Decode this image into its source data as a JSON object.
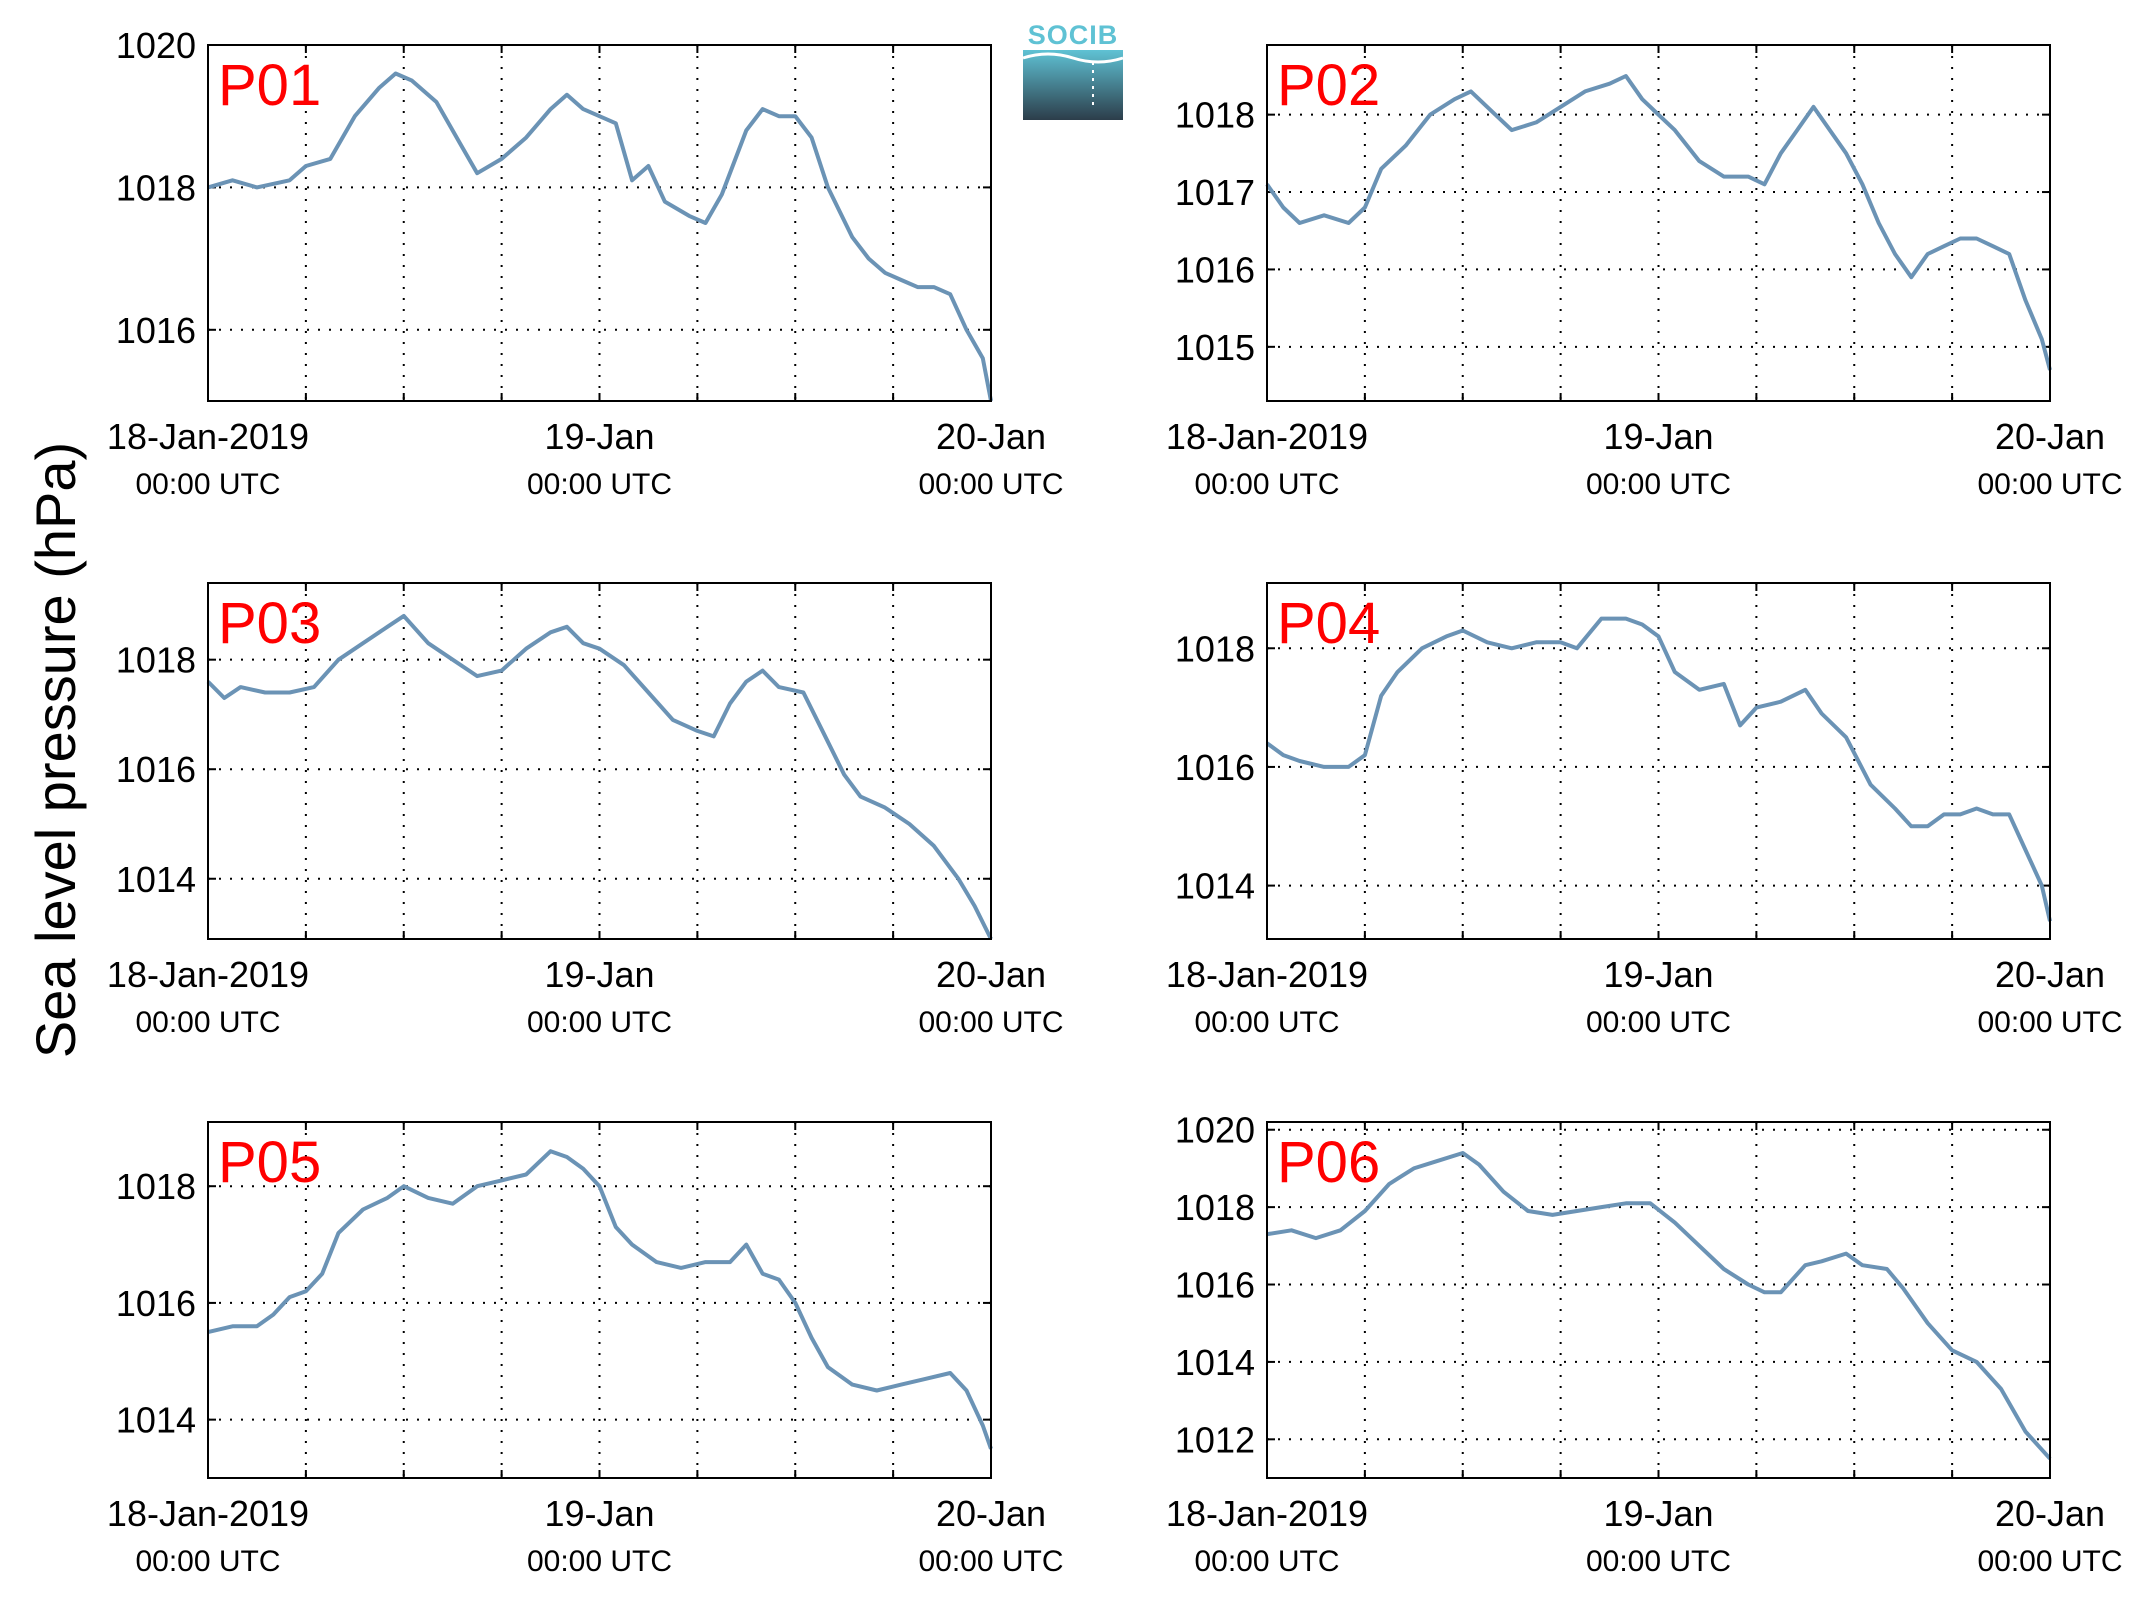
{
  "ylabel": "Sea level pressure (hPa)",
  "logo": {
    "text": "SOCIB"
  },
  "colors": {
    "line": "#6b93b5",
    "panel_label": "#ff0000",
    "grid": "#000000",
    "logo_top": "#5fc2d4",
    "logo_bottom": "#2c3d4a"
  },
  "x_tick_labels": [
    {
      "x": "2019-01-18 00:00",
      "line1": "18-Jan-2019",
      "line2": "00:00 UTC"
    },
    {
      "x": "2019-01-19 00:00",
      "line1": "19-Jan",
      "line2": "00:00 UTC"
    },
    {
      "x": "2019-01-20 00:00",
      "line1": "20-Jan",
      "line2": "00:00 UTC"
    }
  ],
  "chart_data": [
    {
      "type": "line",
      "title": "P01",
      "xlim": [
        "2019-01-18 00:00",
        "2019-01-20 00:00"
      ],
      "x_gridlines_hours": [
        0,
        6,
        12,
        18,
        24,
        30,
        36,
        42,
        48
      ],
      "ylim": [
        1015,
        1020
      ],
      "yticks": [
        1016,
        1018,
        1020
      ],
      "grid": true,
      "x": [
        "2019-01-18 00:00",
        "2019-01-18 01:30",
        "2019-01-18 03:00",
        "2019-01-18 05:00",
        "2019-01-18 06:00",
        "2019-01-18 07:30",
        "2019-01-18 09:00",
        "2019-01-18 10:30",
        "2019-01-18 11:30",
        "2019-01-18 12:30",
        "2019-01-18 14:00",
        "2019-01-18 15:30",
        "2019-01-18 16:30",
        "2019-01-18 18:00",
        "2019-01-18 19:30",
        "2019-01-18 21:00",
        "2019-01-18 22:00",
        "2019-01-18 23:00",
        "2019-01-19 00:00",
        "2019-01-19 01:00",
        "2019-01-19 02:00",
        "2019-01-19 03:00",
        "2019-01-19 04:00",
        "2019-01-19 05:30",
        "2019-01-19 06:30",
        "2019-01-19 07:30",
        "2019-01-19 09:00",
        "2019-01-19 10:00",
        "2019-01-19 11:00",
        "2019-01-19 12:00",
        "2019-01-19 13:00",
        "2019-01-19 14:00",
        "2019-01-19 15:30",
        "2019-01-19 16:30",
        "2019-01-19 17:30",
        "2019-01-19 18:30",
        "2019-01-19 19:30",
        "2019-01-19 20:30",
        "2019-01-19 21:30",
        "2019-01-19 22:30",
        "2019-01-19 23:30",
        "2019-01-20 00:00"
      ],
      "y": [
        1018.0,
        1018.1,
        1018.0,
        1018.1,
        1018.3,
        1018.4,
        1019.0,
        1019.4,
        1019.6,
        1019.5,
        1019.2,
        1018.6,
        1018.2,
        1018.4,
        1018.7,
        1019.1,
        1019.3,
        1019.1,
        1019.0,
        1018.9,
        1018.1,
        1018.3,
        1017.8,
        1017.6,
        1017.5,
        1017.9,
        1018.8,
        1019.1,
        1019.0,
        1019.0,
        1018.7,
        1018.0,
        1017.3,
        1017.0,
        1016.8,
        1016.7,
        1016.6,
        1016.6,
        1016.5,
        1016.0,
        1015.6,
        1015.0
      ]
    },
    {
      "type": "line",
      "title": "P02",
      "xlim": [
        "2019-01-18 00:00",
        "2019-01-20 00:00"
      ],
      "x_gridlines_hours": [
        0,
        6,
        12,
        18,
        24,
        30,
        36,
        42,
        48
      ],
      "ylim": [
        1014.3,
        1018.9
      ],
      "yticks": [
        1015,
        1016,
        1017,
        1018
      ],
      "grid": true,
      "x": [
        "2019-01-18 00:00",
        "2019-01-18 01:00",
        "2019-01-18 02:00",
        "2019-01-18 03:30",
        "2019-01-18 05:00",
        "2019-01-18 06:00",
        "2019-01-18 07:00",
        "2019-01-18 08:30",
        "2019-01-18 10:00",
        "2019-01-18 11:30",
        "2019-01-18 12:30",
        "2019-01-18 13:30",
        "2019-01-18 15:00",
        "2019-01-18 16:30",
        "2019-01-18 18:00",
        "2019-01-18 19:30",
        "2019-01-18 21:00",
        "2019-01-18 22:00",
        "2019-01-18 23:00",
        "2019-01-19 00:00",
        "2019-01-19 01:00",
        "2019-01-19 02:30",
        "2019-01-19 04:00",
        "2019-01-19 05:30",
        "2019-01-19 06:30",
        "2019-01-19 07:30",
        "2019-01-19 08:30",
        "2019-01-19 09:30",
        "2019-01-19 10:30",
        "2019-01-19 11:30",
        "2019-01-19 12:30",
        "2019-01-19 13:30",
        "2019-01-19 14:30",
        "2019-01-19 15:30",
        "2019-01-19 16:30",
        "2019-01-19 17:30",
        "2019-01-19 18:30",
        "2019-01-19 19:30",
        "2019-01-19 20:30",
        "2019-01-19 21:30",
        "2019-01-19 22:30",
        "2019-01-19 23:30",
        "2019-01-20 00:00"
      ],
      "y": [
        1017.1,
        1016.8,
        1016.6,
        1016.7,
        1016.6,
        1016.8,
        1017.3,
        1017.6,
        1018.0,
        1018.2,
        1018.3,
        1018.1,
        1017.8,
        1017.9,
        1018.1,
        1018.3,
        1018.4,
        1018.5,
        1018.2,
        1018.0,
        1017.8,
        1017.4,
        1017.2,
        1017.2,
        1017.1,
        1017.5,
        1017.8,
        1018.1,
        1017.8,
        1017.5,
        1017.1,
        1016.6,
        1016.2,
        1015.9,
        1016.2,
        1016.3,
        1016.4,
        1016.4,
        1016.3,
        1016.2,
        1015.6,
        1015.1,
        1014.7
      ]
    },
    {
      "type": "line",
      "title": "P03",
      "xlim": [
        "2019-01-18 00:00",
        "2019-01-20 00:00"
      ],
      "x_gridlines_hours": [
        0,
        6,
        12,
        18,
        24,
        30,
        36,
        42,
        48
      ],
      "ylim": [
        1012.9,
        1019.4
      ],
      "yticks": [
        1014,
        1016,
        1018
      ],
      "grid": true,
      "x": [
        "2019-01-18 00:00",
        "2019-01-18 01:00",
        "2019-01-18 02:00",
        "2019-01-18 03:30",
        "2019-01-18 05:00",
        "2019-01-18 06:30",
        "2019-01-18 08:00",
        "2019-01-18 09:30",
        "2019-01-18 11:00",
        "2019-01-18 12:00",
        "2019-01-18 13:30",
        "2019-01-18 15:00",
        "2019-01-18 16:30",
        "2019-01-18 18:00",
        "2019-01-18 19:30",
        "2019-01-18 21:00",
        "2019-01-18 22:00",
        "2019-01-18 23:00",
        "2019-01-19 00:00",
        "2019-01-19 01:30",
        "2019-01-19 03:00",
        "2019-01-19 04:30",
        "2019-01-19 06:00",
        "2019-01-19 07:00",
        "2019-01-19 08:00",
        "2019-01-19 09:00",
        "2019-01-19 10:00",
        "2019-01-19 11:00",
        "2019-01-19 12:30",
        "2019-01-19 14:00",
        "2019-01-19 15:00",
        "2019-01-19 16:00",
        "2019-01-19 17:30",
        "2019-01-19 19:00",
        "2019-01-19 20:30",
        "2019-01-19 22:00",
        "2019-01-19 23:00",
        "2019-01-20 00:00"
      ],
      "y": [
        1017.6,
        1017.3,
        1017.5,
        1017.4,
        1017.4,
        1017.5,
        1018.0,
        1018.3,
        1018.6,
        1018.8,
        1018.3,
        1018.0,
        1017.7,
        1017.8,
        1018.2,
        1018.5,
        1018.6,
        1018.3,
        1018.2,
        1017.9,
        1017.4,
        1016.9,
        1016.7,
        1016.6,
        1017.2,
        1017.6,
        1017.8,
        1017.5,
        1017.4,
        1016.5,
        1015.9,
        1015.5,
        1015.3,
        1015.0,
        1014.6,
        1014.0,
        1013.5,
        1012.9
      ]
    },
    {
      "type": "line",
      "title": "P04",
      "xlim": [
        "2019-01-18 00:00",
        "2019-01-20 00:00"
      ],
      "x_gridlines_hours": [
        0,
        6,
        12,
        18,
        24,
        30,
        36,
        42,
        48
      ],
      "ylim": [
        1013.1,
        1019.1
      ],
      "yticks": [
        1014,
        1016,
        1018
      ],
      "grid": true,
      "x": [
        "2019-01-18 00:00",
        "2019-01-18 01:00",
        "2019-01-18 02:00",
        "2019-01-18 03:30",
        "2019-01-18 05:00",
        "2019-01-18 06:00",
        "2019-01-18 07:00",
        "2019-01-18 08:00",
        "2019-01-18 09:30",
        "2019-01-18 11:00",
        "2019-01-18 12:00",
        "2019-01-18 13:30",
        "2019-01-18 15:00",
        "2019-01-18 16:30",
        "2019-01-18 18:00",
        "2019-01-18 19:00",
        "2019-01-18 20:30",
        "2019-01-18 22:00",
        "2019-01-18 23:00",
        "2019-01-19 00:00",
        "2019-01-19 01:00",
        "2019-01-19 02:30",
        "2019-01-19 04:00",
        "2019-01-19 05:00",
        "2019-01-19 06:00",
        "2019-01-19 07:30",
        "2019-01-19 09:00",
        "2019-01-19 10:00",
        "2019-01-19 11:30",
        "2019-01-19 13:00",
        "2019-01-19 14:30",
        "2019-01-19 15:30",
        "2019-01-19 16:30",
        "2019-01-19 17:30",
        "2019-01-19 18:30",
        "2019-01-19 19:30",
        "2019-01-19 20:30",
        "2019-01-19 21:30",
        "2019-01-19 22:30",
        "2019-01-19 23:30",
        "2019-01-20 00:00"
      ],
      "y": [
        1016.4,
        1016.2,
        1016.1,
        1016.0,
        1016.0,
        1016.2,
        1017.2,
        1017.6,
        1018.0,
        1018.2,
        1018.3,
        1018.1,
        1018.0,
        1018.1,
        1018.1,
        1018.0,
        1018.5,
        1018.5,
        1018.4,
        1018.2,
        1017.6,
        1017.3,
        1017.4,
        1016.7,
        1017.0,
        1017.1,
        1017.3,
        1016.9,
        1016.5,
        1015.7,
        1015.3,
        1015.0,
        1015.0,
        1015.2,
        1015.2,
        1015.3,
        1015.2,
        1015.2,
        1014.6,
        1014.0,
        1013.4
      ]
    },
    {
      "type": "line",
      "title": "P05",
      "xlim": [
        "2019-01-18 00:00",
        "2019-01-20 00:00"
      ],
      "x_gridlines_hours": [
        0,
        6,
        12,
        18,
        24,
        30,
        36,
        42,
        48
      ],
      "ylim": [
        1013.0,
        1019.1
      ],
      "yticks": [
        1014,
        1016,
        1018
      ],
      "grid": true,
      "x": [
        "2019-01-18 00:00",
        "2019-01-18 01:30",
        "2019-01-18 03:00",
        "2019-01-18 04:00",
        "2019-01-18 05:00",
        "2019-01-18 06:00",
        "2019-01-18 07:00",
        "2019-01-18 08:00",
        "2019-01-18 09:30",
        "2019-01-18 11:00",
        "2019-01-18 12:00",
        "2019-01-18 13:30",
        "2019-01-18 15:00",
        "2019-01-18 16:30",
        "2019-01-18 18:00",
        "2019-01-18 19:30",
        "2019-01-18 21:00",
        "2019-01-18 22:00",
        "2019-01-18 23:00",
        "2019-01-19 00:00",
        "2019-01-19 01:00",
        "2019-01-19 02:00",
        "2019-01-19 03:30",
        "2019-01-19 05:00",
        "2019-01-19 06:30",
        "2019-01-19 08:00",
        "2019-01-19 09:00",
        "2019-01-19 10:00",
        "2019-01-19 11:00",
        "2019-01-19 12:00",
        "2019-01-19 13:00",
        "2019-01-19 14:00",
        "2019-01-19 15:30",
        "2019-01-19 17:00",
        "2019-01-19 18:30",
        "2019-01-19 20:00",
        "2019-01-19 21:30",
        "2019-01-19 22:30",
        "2019-01-19 23:30",
        "2019-01-20 00:00"
      ],
      "y": [
        1015.5,
        1015.6,
        1015.6,
        1015.8,
        1016.1,
        1016.2,
        1016.5,
        1017.2,
        1017.6,
        1017.8,
        1018.0,
        1017.8,
        1017.7,
        1018.0,
        1018.1,
        1018.2,
        1018.6,
        1018.5,
        1018.3,
        1018.0,
        1017.3,
        1017.0,
        1016.7,
        1016.6,
        1016.7,
        1016.7,
        1017.0,
        1016.5,
        1016.4,
        1016.0,
        1015.4,
        1014.9,
        1014.6,
        1014.5,
        1014.6,
        1014.7,
        1014.8,
        1014.5,
        1013.9,
        1013.5
      ]
    },
    {
      "type": "line",
      "title": "P06",
      "xlim": [
        "2019-01-18 00:00",
        "2019-01-20 00:00"
      ],
      "x_gridlines_hours": [
        0,
        6,
        12,
        18,
        24,
        30,
        36,
        42,
        48
      ],
      "ylim": [
        1011.0,
        1020.2
      ],
      "yticks": [
        1012,
        1014,
        1016,
        1018,
        1020
      ],
      "grid": true,
      "x": [
        "2019-01-18 00:00",
        "2019-01-18 01:30",
        "2019-01-18 03:00",
        "2019-01-18 04:30",
        "2019-01-18 06:00",
        "2019-01-18 07:30",
        "2019-01-18 09:00",
        "2019-01-18 10:30",
        "2019-01-18 12:00",
        "2019-01-18 13:00",
        "2019-01-18 14:30",
        "2019-01-18 16:00",
        "2019-01-18 17:30",
        "2019-01-18 19:00",
        "2019-01-18 20:30",
        "2019-01-18 22:00",
        "2019-01-18 23:30",
        "2019-01-19 01:00",
        "2019-01-19 02:30",
        "2019-01-19 04:00",
        "2019-01-19 05:30",
        "2019-01-19 06:30",
        "2019-01-19 07:30",
        "2019-01-19 09:00",
        "2019-01-19 10:00",
        "2019-01-19 11:30",
        "2019-01-19 12:30",
        "2019-01-19 14:00",
        "2019-01-19 15:00",
        "2019-01-19 16:30",
        "2019-01-19 18:00",
        "2019-01-19 19:30",
        "2019-01-19 21:00",
        "2019-01-19 22:30",
        "2019-01-20 00:00"
      ],
      "y": [
        1017.3,
        1017.4,
        1017.2,
        1017.4,
        1017.9,
        1018.6,
        1019.0,
        1019.2,
        1019.4,
        1019.1,
        1018.4,
        1017.9,
        1017.8,
        1017.9,
        1018.0,
        1018.1,
        1018.1,
        1017.6,
        1017.0,
        1016.4,
        1016.0,
        1015.8,
        1015.8,
        1016.5,
        1016.6,
        1016.8,
        1016.5,
        1016.4,
        1015.9,
        1015.0,
        1014.3,
        1014.0,
        1013.3,
        1012.2,
        1011.5
      ]
    }
  ]
}
